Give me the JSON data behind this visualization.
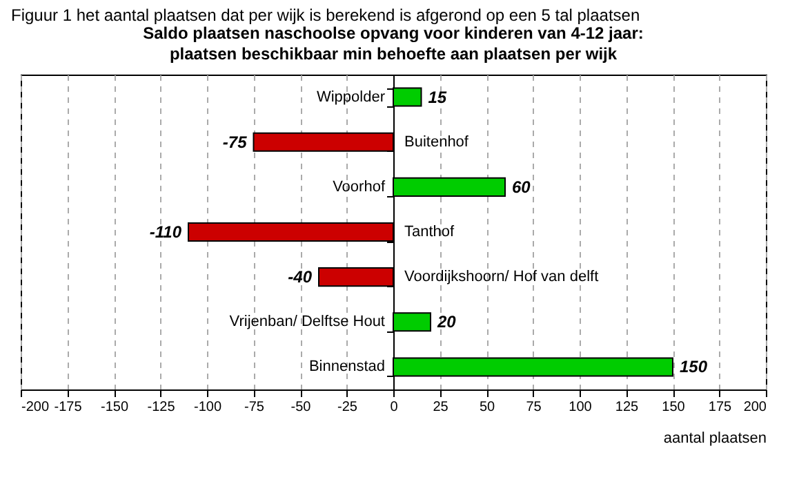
{
  "chart_data": {
    "type": "bar",
    "orientation": "horizontal",
    "title": "Saldo plaatsen naschoolse opvang voor kinderen van 4-12 jaar:",
    "subtitle": "plaatsen beschikbaar min behoefte aan plaatsen per wijk",
    "annotations": [
      "Figuur 1 het aantal plaatsen dat per wijk is berekend is afgerond op een 5 tal plaatsen"
    ],
    "xlabel": "aantal plaatsen",
    "categories": [
      "Wippolder",
      "Buitenhof",
      "Voorhof",
      "Tanthof",
      "Voordijkshoorn/ Hof van delft",
      "Vrijenban/ Delftse Hout",
      "Binnenstad"
    ],
    "values": [
      15,
      -75,
      60,
      -110,
      -40,
      20,
      150
    ],
    "colors": [
      "#00cc00",
      "#cc0000",
      "#00cc00",
      "#cc0000",
      "#cc0000",
      "#00cc00",
      "#00cc00"
    ],
    "xlim": [
      -200,
      200
    ],
    "xticks": [
      -200,
      -175,
      -150,
      -125,
      -100,
      -75,
      -50,
      -25,
      0,
      25,
      50,
      75,
      100,
      125,
      150,
      175,
      200
    ],
    "grid": "x",
    "data_labels": true,
    "legend": false
  }
}
